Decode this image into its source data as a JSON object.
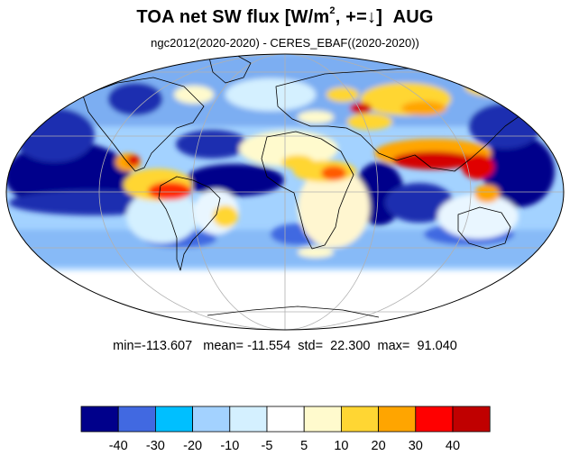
{
  "title": {
    "prefix": "TOA net SW flux [W/m",
    "exponent": "2",
    "suffix": ", +=",
    "arrow": "↓",
    "close": "]",
    "month": "AUG"
  },
  "subtitle": "ngc2012(2020-2020) - CERES_EBAF((2020-2020))",
  "stats": {
    "min_label": "min=",
    "min": "-113.607",
    "mean_label": "mean=",
    "mean": "-11.554",
    "std_label": "std=",
    "std": "22.300",
    "max_label": "max=",
    "max": "91.040"
  },
  "colorbar": {
    "colors": [
      "#00008b",
      "#4169e1",
      "#00bfff",
      "#a3d2ff",
      "#d4f0ff",
      "#ffffff",
      "#fffacd",
      "#ffd633",
      "#ffa500",
      "#ff0000",
      "#c00000"
    ],
    "levels": [
      "-40",
      "-30",
      "-20",
      "-10",
      "-5",
      "5",
      "10",
      "20",
      "30",
      "40"
    ]
  },
  "map": {
    "projection": "mollweide",
    "land_outline_color": "#000000",
    "graticule_color": "#b0b0b0"
  }
}
